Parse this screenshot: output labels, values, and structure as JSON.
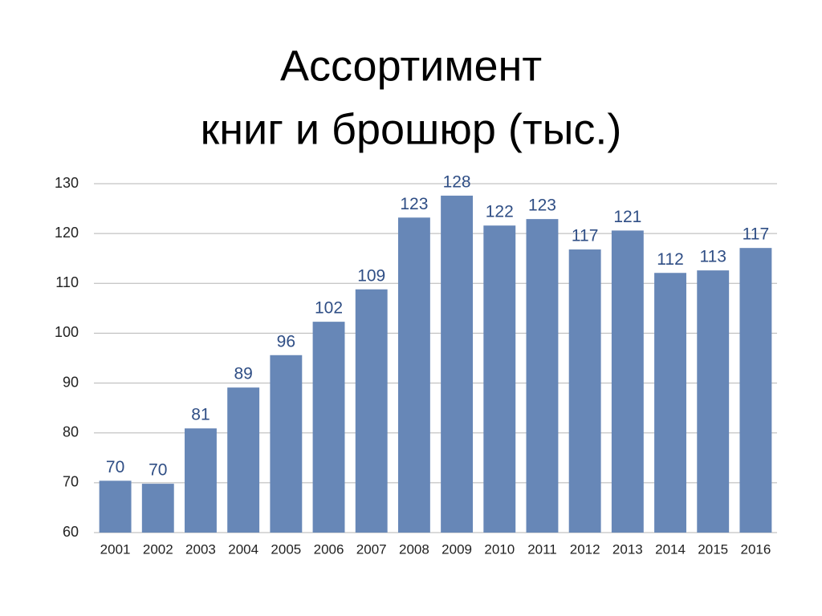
{
  "chart_data": {
    "type": "bar",
    "title": [
      "Ассортимент",
      "книг и брошюр (тыс.)"
    ],
    "categories": [
      "2001",
      "2002",
      "2003",
      "2004",
      "2005",
      "2006",
      "2007",
      "2008",
      "2009",
      "2010",
      "2011",
      "2012",
      "2013",
      "2014",
      "2015",
      "2016"
    ],
    "values": [
      70.4,
      69.8,
      80.9,
      89.1,
      95.6,
      102.3,
      108.8,
      123.2,
      127.6,
      121.6,
      122.9,
      116.8,
      120.6,
      112.1,
      112.6,
      117.1
    ],
    "value_labels": [
      "70",
      "70",
      "81",
      "89",
      "96",
      "102",
      "109",
      "123",
      "128",
      "122",
      "123",
      "117",
      "121",
      "112",
      "113",
      "117"
    ],
    "color": "#6787b7",
    "ylim": [
      60,
      130
    ],
    "yticks": [
      60,
      70,
      80,
      90,
      100,
      110,
      120,
      130
    ],
    "grid": true
  }
}
